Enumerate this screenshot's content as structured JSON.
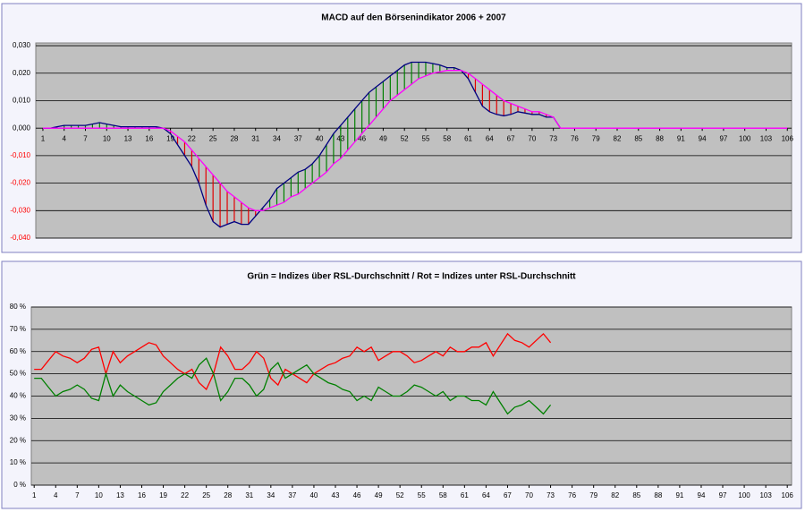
{
  "chart_data": [
    {
      "type": "line",
      "title": "MACD auf den Börsenindikator 2006 + 2007",
      "x": [
        1,
        2,
        3,
        4,
        5,
        6,
        7,
        8,
        9,
        10,
        11,
        12,
        13,
        14,
        15,
        16,
        17,
        18,
        19,
        20,
        21,
        22,
        23,
        24,
        25,
        26,
        27,
        28,
        29,
        30,
        31,
        32,
        33,
        34,
        35,
        36,
        37,
        38,
        39,
        40,
        41,
        42,
        43,
        44,
        45,
        46,
        47,
        48,
        49,
        50,
        51,
        52,
        53,
        54,
        55,
        56,
        57,
        58,
        59,
        60,
        61,
        62,
        63,
        64,
        65,
        66,
        67,
        68,
        69,
        70,
        71,
        72,
        73,
        74,
        106
      ],
      "series": [
        {
          "color": "#000080",
          "values": [
            0,
            0,
            0.0005,
            0.001,
            0.001,
            0.001,
            0.001,
            0.0015,
            0.002,
            0.0015,
            0.001,
            0.0005,
            0.0005,
            0.0005,
            0.0005,
            0.0005,
            0.0005,
            0,
            -0.002,
            -0.006,
            -0.01,
            -0.014,
            -0.02,
            -0.028,
            -0.034,
            -0.036,
            -0.035,
            -0.034,
            -0.035,
            -0.035,
            -0.032,
            -0.029,
            -0.026,
            -0.022,
            -0.02,
            -0.018,
            -0.016,
            -0.015,
            -0.013,
            -0.01,
            -0.006,
            -0.002,
            0.001,
            0.004,
            0.007,
            0.01,
            0.013,
            0.015,
            0.017,
            0.019,
            0.021,
            0.023,
            0.024,
            0.024,
            0.024,
            0.0235,
            0.023,
            0.022,
            0.022,
            0.021,
            0.018,
            0.013,
            0.008,
            0.006,
            0.005,
            0.0045,
            0.005,
            0.006,
            0.0055,
            0.005,
            0.005,
            0.004,
            0.004,
            0,
            null
          ]
        },
        {
          "color": "#ff00ff",
          "values": [
            0,
            0,
            0,
            0,
            0,
            0,
            0,
            0,
            0,
            0,
            0,
            0,
            0,
            0,
            0,
            0,
            0,
            0,
            -0.001,
            -0.003,
            -0.005,
            -0.008,
            -0.011,
            -0.014,
            -0.017,
            -0.02,
            -0.023,
            -0.025,
            -0.027,
            -0.029,
            -0.03,
            -0.03,
            -0.029,
            -0.028,
            -0.027,
            -0.025,
            -0.024,
            -0.022,
            -0.02,
            -0.018,
            -0.016,
            -0.013,
            -0.011,
            -0.008,
            -0.005,
            -0.002,
            0.001,
            0.004,
            0.007,
            0.01,
            0.012,
            0.014,
            0.016,
            0.018,
            0.019,
            0.02,
            0.0205,
            0.021,
            0.021,
            0.021,
            0.02,
            0.018,
            0.016,
            0.014,
            0.012,
            0.01,
            0.009,
            0.008,
            0.007,
            0.006,
            0.006,
            0.005,
            0.004,
            0,
            0
          ]
        }
      ],
      "hatch_colors": {
        "below": "#e00000",
        "above": "#008000"
      },
      "xlim": [
        0,
        106.6
      ],
      "xticks": [
        1,
        4,
        7,
        10,
        13,
        16,
        19,
        22,
        25,
        28,
        31,
        34,
        37,
        40,
        43,
        46,
        49,
        52,
        55,
        58,
        61,
        64,
        67,
        70,
        73,
        76,
        79,
        82,
        85,
        88,
        91,
        94,
        97,
        100,
        103,
        106
      ],
      "ylim": [
        -0.04,
        0.031
      ],
      "yticks": [
        {
          "value": -0.04,
          "label": "-0,040"
        },
        {
          "value": -0.03,
          "label": "-0,030"
        },
        {
          "value": -0.02,
          "label": "-0,020"
        },
        {
          "value": -0.01,
          "label": "-0,010"
        },
        {
          "value": 0,
          "label": "0,000"
        },
        {
          "value": 0.01,
          "label": "0,010"
        },
        {
          "value": 0.02,
          "label": "0,020"
        },
        {
          "value": 0.03,
          "label": "0,030"
        }
      ],
      "negative_tick_color": "#ff0000",
      "grid": true
    },
    {
      "type": "line",
      "title": "Grün = Indizes über RSL-Durchschnitt / Rot = Indizes unter RSL-Durchschnitt",
      "x": [
        1,
        2,
        3,
        4,
        5,
        6,
        7,
        8,
        9,
        10,
        11,
        12,
        13,
        14,
        15,
        16,
        17,
        18,
        19,
        20,
        21,
        22,
        23,
        24,
        25,
        26,
        27,
        28,
        29,
        30,
        31,
        32,
        33,
        34,
        35,
        36,
        37,
        38,
        39,
        40,
        41,
        42,
        43,
        44,
        45,
        46,
        47,
        48,
        49,
        50,
        51,
        52,
        53,
        54,
        55,
        56,
        57,
        58,
        59,
        60,
        61,
        62,
        63,
        64,
        65,
        66,
        67,
        68,
        69,
        70,
        71,
        72,
        73
      ],
      "series": [
        {
          "color": "#ff0000",
          "values": [
            52,
            52,
            56,
            60,
            58,
            57,
            55,
            57,
            61,
            62,
            50,
            60,
            55,
            58,
            60,
            62,
            64,
            63,
            58,
            55,
            52,
            50,
            52,
            46,
            43,
            50,
            62,
            58,
            52,
            52,
            55,
            60,
            57,
            48,
            45,
            52,
            50,
            48,
            46,
            50,
            52,
            54,
            55,
            57,
            58,
            62,
            60,
            62,
            56,
            58,
            60,
            60,
            58,
            55,
            56,
            58,
            60,
            58,
            62,
            60,
            60,
            62,
            62,
            64,
            58,
            63,
            68,
            65,
            64,
            62,
            65,
            68,
            64
          ]
        },
        {
          "color": "#008000",
          "values": [
            48,
            48,
            44,
            40,
            42,
            43,
            45,
            43,
            39,
            38,
            50,
            40,
            45,
            42,
            40,
            38,
            36,
            37,
            42,
            45,
            48,
            50,
            48,
            54,
            57,
            50,
            38,
            42,
            48,
            48,
            45,
            40,
            43,
            52,
            55,
            48,
            50,
            52,
            54,
            50,
            48,
            46,
            45,
            43,
            42,
            38,
            40,
            38,
            44,
            42,
            40,
            40,
            42,
            45,
            44,
            42,
            40,
            42,
            38,
            40,
            40,
            38,
            38,
            36,
            42,
            37,
            32,
            35,
            36,
            38,
            35,
            32,
            36
          ]
        }
      ],
      "xlim": [
        0.6,
        106.6
      ],
      "xticks": [
        1,
        4,
        7,
        10,
        13,
        16,
        19,
        22,
        25,
        28,
        31,
        34,
        37,
        40,
        43,
        46,
        49,
        52,
        55,
        58,
        61,
        64,
        67,
        70,
        73,
        76,
        79,
        82,
        85,
        88,
        91,
        94,
        97,
        100,
        103,
        106
      ],
      "ylim": [
        0,
        80
      ],
      "yticks": [
        {
          "value": 0,
          "label": "0 %"
        },
        {
          "value": 10,
          "label": "10 %"
        },
        {
          "value": 20,
          "label": "20 %"
        },
        {
          "value": 30,
          "label": "30 %"
        },
        {
          "value": 40,
          "label": "40 %"
        },
        {
          "value": 50,
          "label": "50 %"
        },
        {
          "value": 60,
          "label": "60 %"
        },
        {
          "value": 70,
          "label": "70 %"
        },
        {
          "value": 80,
          "label": "80 %"
        }
      ],
      "grid": true
    }
  ]
}
